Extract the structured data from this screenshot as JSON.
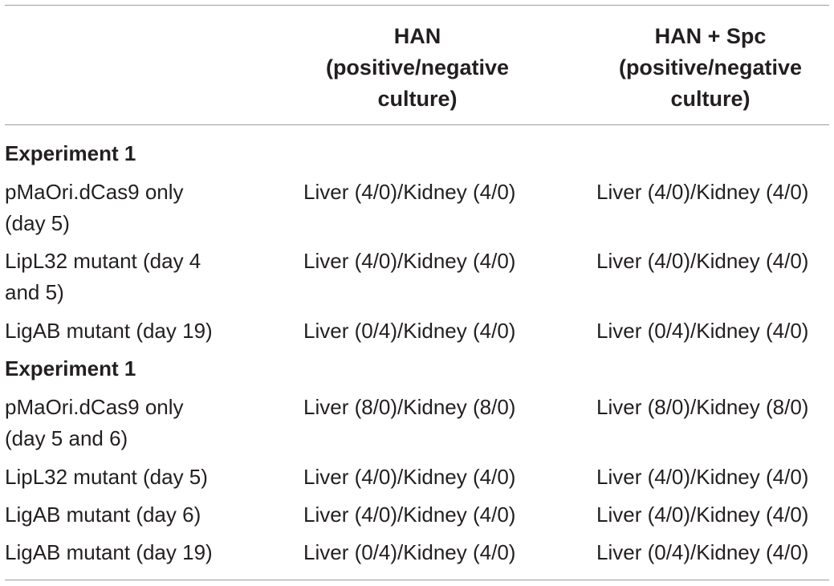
{
  "headers": {
    "han": [
      "HAN",
      "(positive/negative",
      "culture)"
    ],
    "han_spc": [
      "HAN + Spc",
      "(positive/negative",
      "culture)"
    ]
  },
  "rows": [
    {
      "type": "section",
      "label": "Experiment 1"
    },
    {
      "type": "data",
      "label": [
        "pMaOri.dCas9 only",
        "(day 5)"
      ],
      "han": "Liver (4/0)/Kidney (4/0)",
      "han_spc": "Liver (4/0)/Kidney (4/0)"
    },
    {
      "type": "data",
      "label": [
        "LipL32 mutant (day 4",
        "and 5)"
      ],
      "han": "Liver (4/0)/Kidney (4/0)",
      "han_spc": "Liver (4/0)/Kidney (4/0)"
    },
    {
      "type": "data",
      "label": [
        "LigAB mutant (day 19)"
      ],
      "han": "Liver (0/4)/Kidney (4/0)",
      "han_spc": "Liver (0/4)/Kidney (4/0)"
    },
    {
      "type": "section",
      "label": "Experiment 1"
    },
    {
      "type": "data",
      "label": [
        "pMaOri.dCas9 only",
        "(day 5 and 6)"
      ],
      "han": "Liver (8/0)/Kidney (8/0)",
      "han_spc": "Liver (8/0)/Kidney (8/0)"
    },
    {
      "type": "data",
      "label": [
        "LipL32 mutant (day 5)"
      ],
      "han": "Liver (4/0)/Kidney (4/0)",
      "han_spc": "Liver (4/0)/Kidney (4/0)"
    },
    {
      "type": "data",
      "label": [
        "LigAB mutant (day 6)"
      ],
      "han": "Liver (4/0)/Kidney (4/0)",
      "han_spc": "Liver (4/0)/Kidney (4/0)"
    },
    {
      "type": "data",
      "label": [
        "LigAB mutant (day 19)"
      ],
      "han": "Liver (0/4)/Kidney (4/0)",
      "han_spc": "Liver (0/4)/Kidney (4/0)"
    }
  ]
}
